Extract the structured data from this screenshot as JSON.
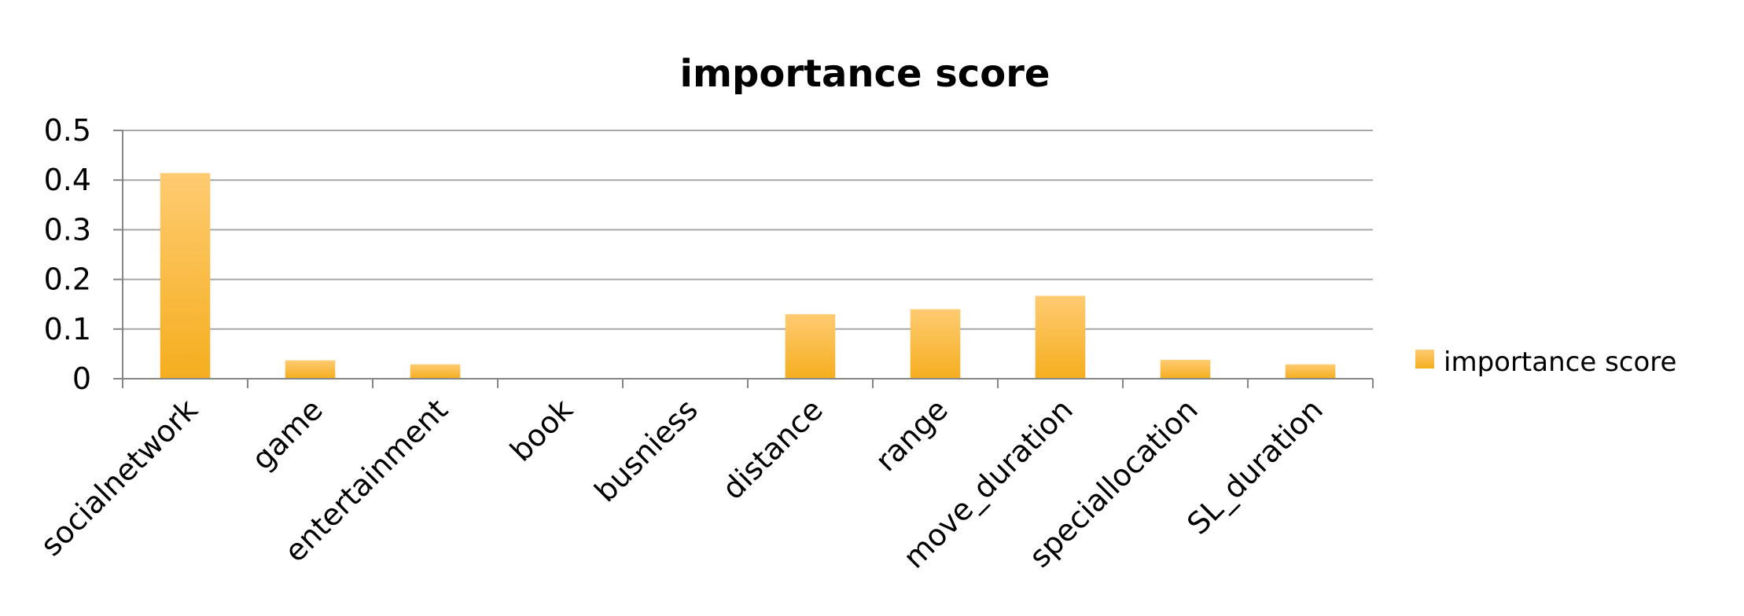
{
  "chart_data": {
    "type": "bar",
    "title": "importance score",
    "xlabel": "",
    "ylabel": "",
    "categories": [
      "socialnetwork",
      "game",
      "entertainment",
      "book",
      "busniess",
      "distance",
      "range",
      "move_duration",
      "speciallocation",
      "SL_duration"
    ],
    "series": [
      {
        "name": "importance score",
        "values": [
          0.414,
          0.037,
          0.029,
          0.0,
          0.0,
          0.13,
          0.14,
          0.167,
          0.038,
          0.029
        ]
      }
    ],
    "ylim": [
      0,
      0.5
    ],
    "yticks": [
      "0",
      "0.1",
      "0.2",
      "0.3",
      "0.4",
      "0.5"
    ],
    "grid": true,
    "legend_position": "right",
    "colors": {
      "bar_top": "#FFCB72",
      "bar_bottom": "#F5AE1E",
      "grid": "#A6A6A6",
      "axis": "#868686"
    }
  }
}
